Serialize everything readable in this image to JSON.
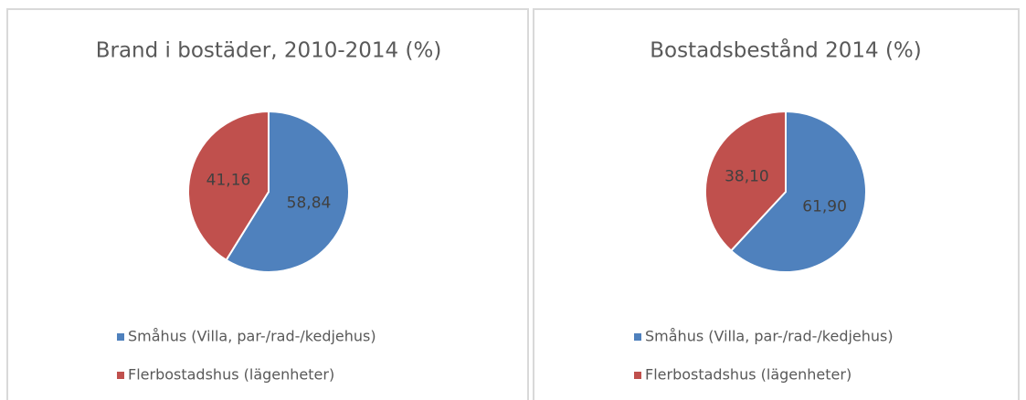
{
  "chart_data": [
    {
      "type": "pie",
      "title": "Brand i bostäder, 2010-2014 (%)",
      "categories": [
        "Småhus (Villa, par-/rad-/kedjehus)",
        "Flerbostadshus (lägenheter)"
      ],
      "values": [
        58.84,
        41.16
      ],
      "value_labels": [
        "58,84",
        "41,16"
      ],
      "colors": [
        "#4f81bd",
        "#c0504d"
      ]
    },
    {
      "type": "pie",
      "title": "Bostadsbestånd 2014 (%)",
      "categories": [
        "Småhus (Villa, par-/rad-/kedjehus)",
        "Flerbostadshus (lägenheter)"
      ],
      "values": [
        61.9,
        38.1
      ],
      "value_labels": [
        "61,90",
        "38,10"
      ],
      "colors": [
        "#4f81bd",
        "#c0504d"
      ]
    }
  ]
}
